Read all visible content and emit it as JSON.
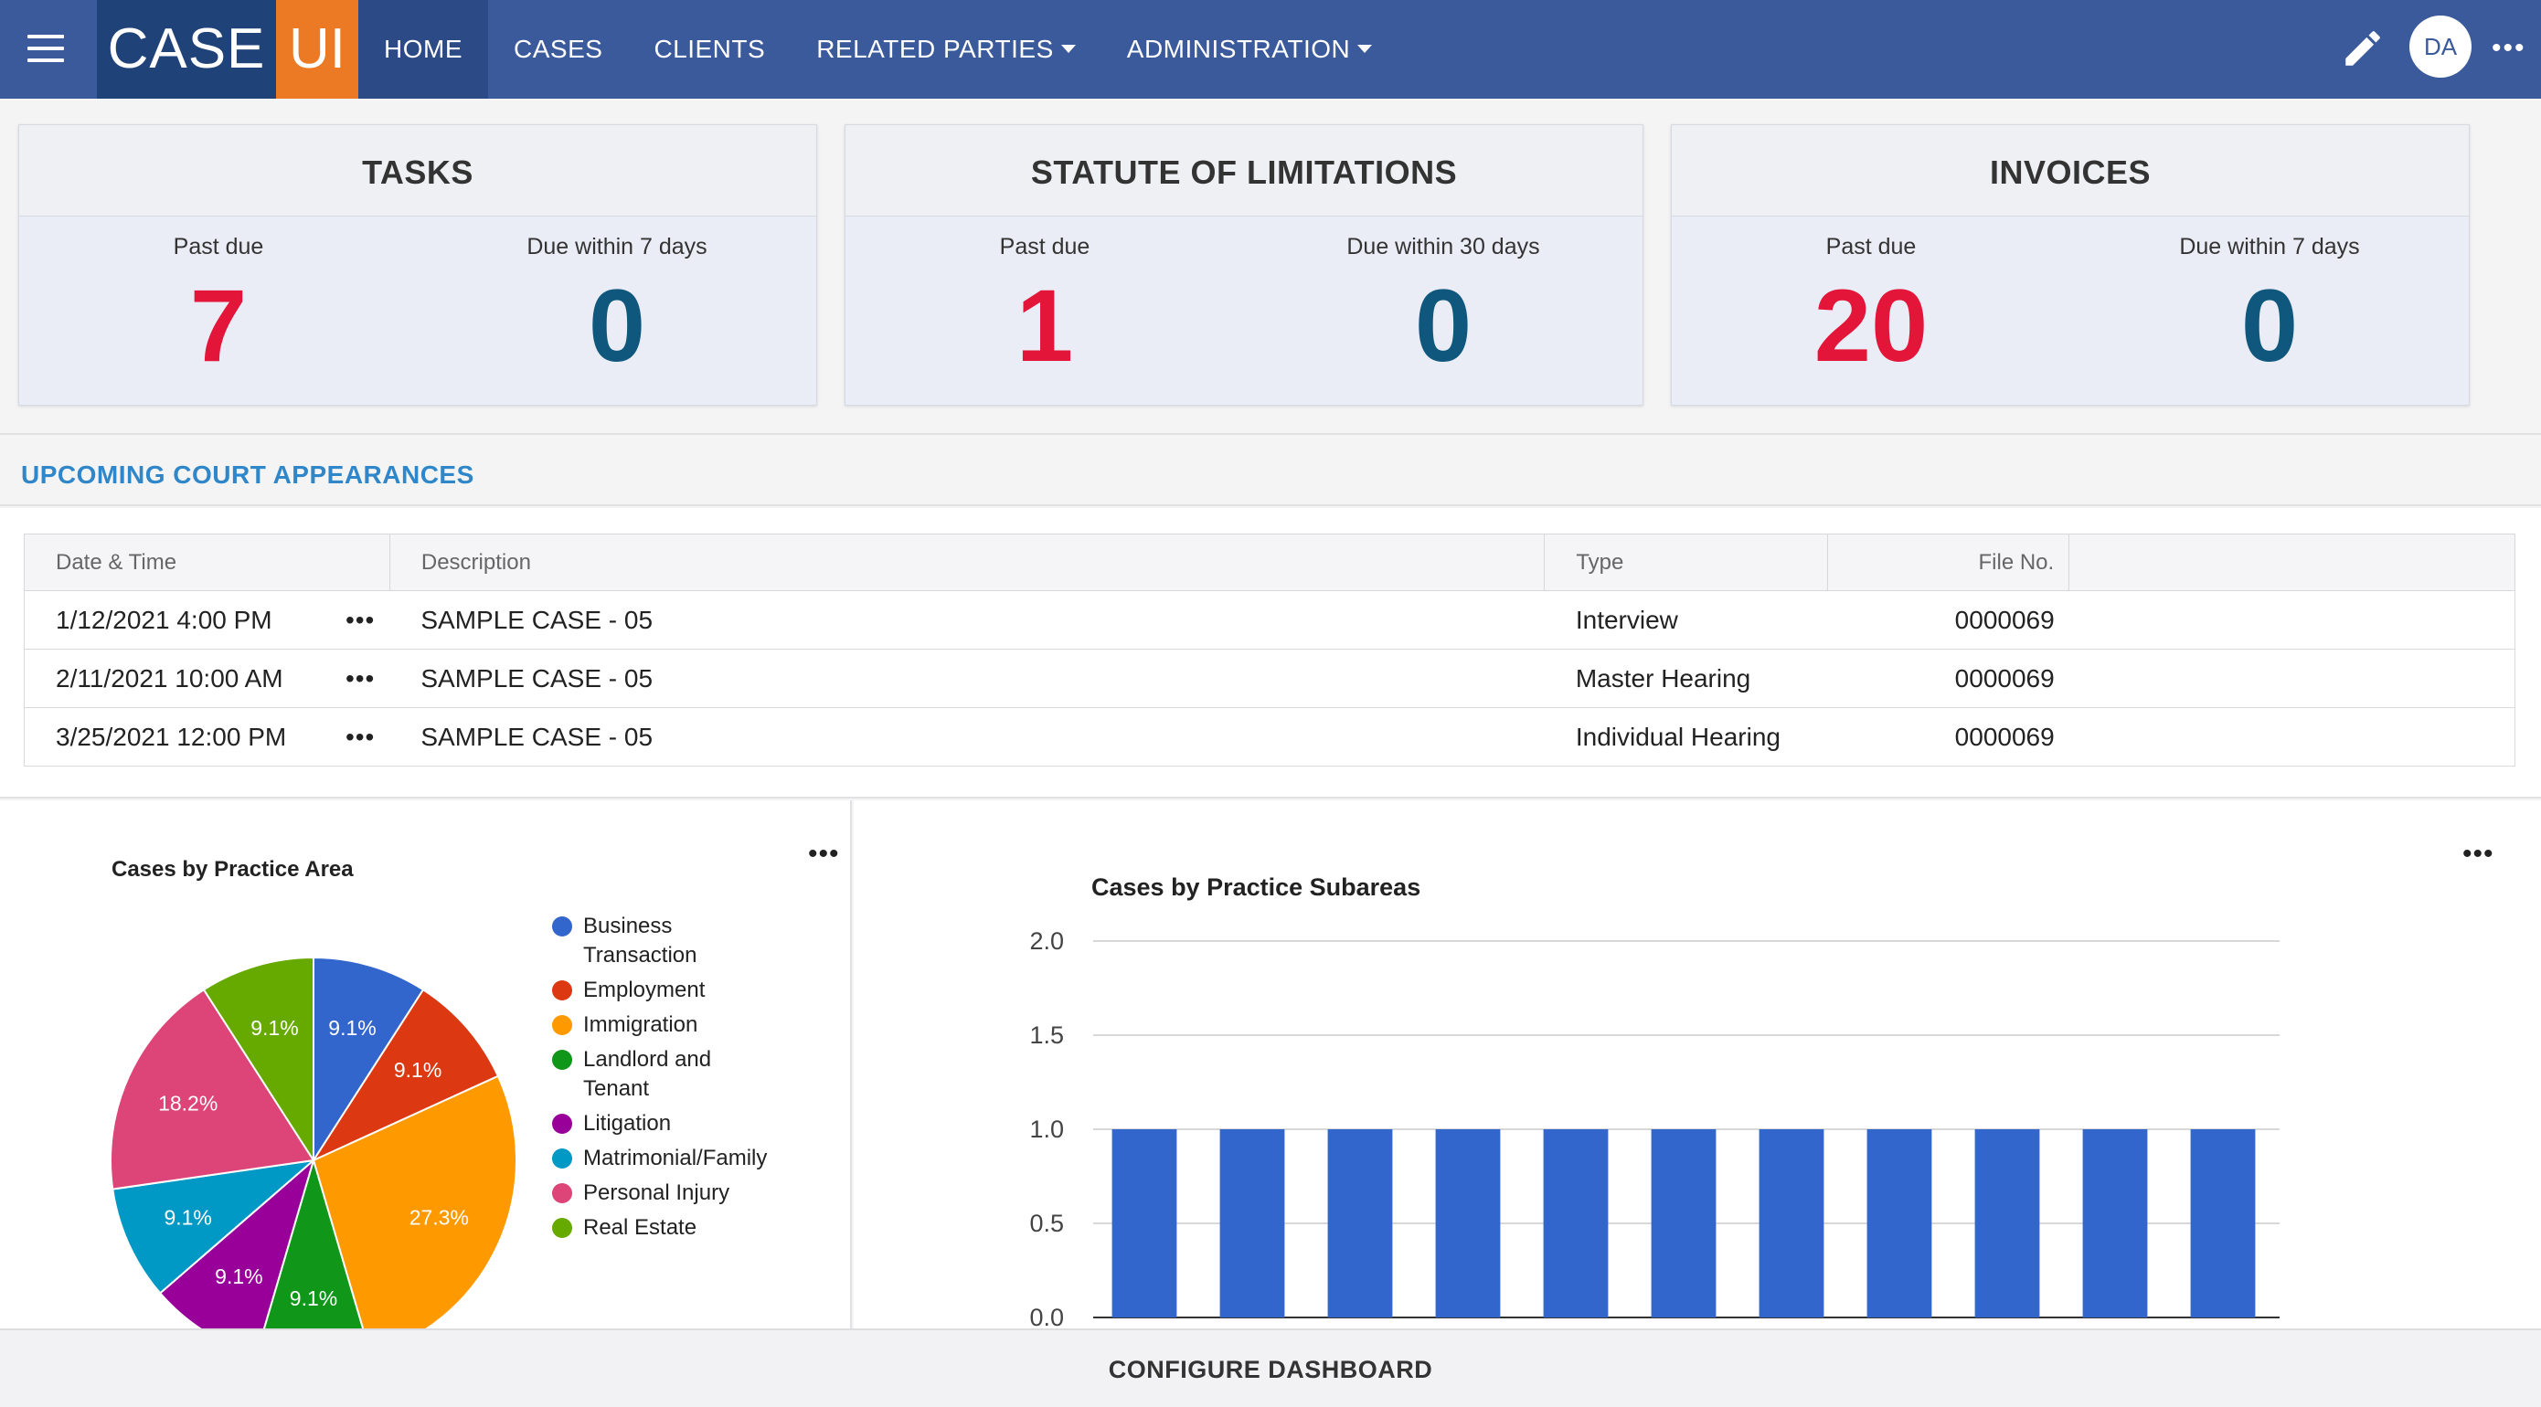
{
  "header": {
    "logo_case": "CASE",
    "logo_ui": "UI",
    "nav": [
      {
        "label": "HOME",
        "active": true
      },
      {
        "label": "CASES"
      },
      {
        "label": "CLIENTS"
      },
      {
        "label": "RELATED PARTIES",
        "dropdown": true
      },
      {
        "label": "ADMINISTRATION",
        "dropdown": true
      }
    ],
    "avatar_initials": "DA",
    "icons": [
      "menu-icon",
      "pencil-icon",
      "more-horizontal-icon"
    ]
  },
  "cards": [
    {
      "title": "TASKS",
      "items": [
        {
          "label": "Past due",
          "value": "7",
          "color": "#e3163a"
        },
        {
          "label": "Due within 7 days",
          "value": "0",
          "color": "#10577e"
        }
      ]
    },
    {
      "title": "STATUTE OF LIMITATIONS",
      "items": [
        {
          "label": "Past due",
          "value": "1",
          "color": "#e3163a"
        },
        {
          "label": "Due within 30 days",
          "value": "0",
          "color": "#10577e"
        }
      ]
    },
    {
      "title": "INVOICES",
      "items": [
        {
          "label": "Past due",
          "value": "20",
          "color": "#e3163a"
        },
        {
          "label": "Due within 7 days",
          "value": "0",
          "color": "#10577e"
        }
      ]
    }
  ],
  "appearances": {
    "title": "UPCOMING COURT APPEARANCES",
    "columns": [
      "Date & Time",
      "Description",
      "Type",
      "File No."
    ],
    "rows": [
      {
        "datetime": "1/12/2021 4:00 PM",
        "description": "SAMPLE CASE - 05",
        "type": "Interview",
        "file_no": "0000069"
      },
      {
        "datetime": "2/11/2021 10:00 AM",
        "description": "SAMPLE CASE - 05",
        "type": "Master Hearing",
        "file_no": "0000069"
      },
      {
        "datetime": "3/25/2021 12:00 PM",
        "description": "SAMPLE CASE - 05",
        "type": "Individual Hearing",
        "file_no": "0000069"
      }
    ]
  },
  "chart_data": [
    {
      "type": "pie",
      "title": "Cases by Practice Area",
      "legend_position": "right",
      "slices": [
        {
          "label": "Business Transaction",
          "legend_lines": [
            "Business",
            "Transaction"
          ],
          "value": 9.1,
          "color": "#3366cc"
        },
        {
          "label": "Employment",
          "value": 9.1,
          "color": "#dc3912"
        },
        {
          "label": "Immigration",
          "value": 27.3,
          "color": "#ff9900"
        },
        {
          "label": "Landlord and Tenant",
          "legend_lines": [
            "Landlord and",
            "Tenant"
          ],
          "value": 9.1,
          "color": "#109618"
        },
        {
          "label": "Litigation",
          "value": 9.1,
          "color": "#990099"
        },
        {
          "label": "Matrimonial/Family",
          "value": 9.1,
          "color": "#0099c6"
        },
        {
          "label": "Personal Injury",
          "value": 18.2,
          "color": "#dd4477"
        },
        {
          "label": "Real Estate",
          "value": 9.1,
          "color": "#66aa00"
        }
      ]
    },
    {
      "type": "bar",
      "title": "Cases by Practice Subareas",
      "ylim": [
        0,
        2
      ],
      "yticks": [
        "2.0",
        "1.5",
        "1.0",
        "0.5",
        "0.0"
      ],
      "grid": true,
      "color": "#3366cc",
      "values": [
        1,
        1,
        1,
        1,
        1,
        1,
        1,
        1,
        1,
        1,
        1
      ]
    }
  ],
  "footer": {
    "label": "CONFIGURE DASHBOARD"
  }
}
